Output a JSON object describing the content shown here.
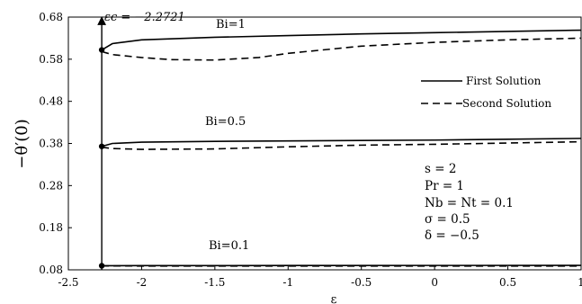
{
  "chart_data": {
    "type": "line",
    "xlabel": "ε",
    "ylabel": "−θ′(0)",
    "xlim": [
      -2.5,
      1
    ],
    "ylim": [
      0.08,
      0.68
    ],
    "x_ticks": [
      -2.5,
      -2,
      -1.5,
      -1,
      -0.5,
      0,
      0.5,
      1
    ],
    "x_tick_labels": [
      "-2.5",
      "-2",
      "-1.5",
      "-1",
      "-0.5",
      "0",
      "0.5",
      "1"
    ],
    "y_ticks": [
      0.08,
      0.18,
      0.28,
      0.38,
      0.48,
      0.58,
      0.68
    ],
    "y_tick_labels": [
      "0.08",
      "0.18",
      "0.28",
      "0.38",
      "0.48",
      "0.58",
      "0.68"
    ],
    "critical": {
      "x": -2.2721,
      "label": "εc = −2.2721"
    },
    "legend": {
      "position": "right",
      "entries": [
        {
          "label": "First Solution",
          "style": "solid"
        },
        {
          "label": "Second Solution",
          "style": "dashed"
        }
      ]
    },
    "annotations": [
      "s = 2",
      "Pr = 1",
      "Nb = Nt = 0.1",
      "σ = 0.5",
      "δ = −0.5"
    ],
    "groups": [
      {
        "label": "Bi=1",
        "first": {
          "x": [
            -2.2721,
            -2.2,
            -2.0,
            -1.5,
            -1.0,
            -0.5,
            0.0,
            0.5,
            1.0
          ],
          "y": [
            0.602,
            0.617,
            0.626,
            0.632,
            0.636,
            0.64,
            0.643,
            0.646,
            0.649
          ]
        },
        "second": {
          "x": [
            -2.2721,
            -2.2,
            -2.0,
            -1.8,
            -1.5,
            -1.2,
            -1.0,
            -0.5,
            0.0,
            0.5,
            1.0
          ],
          "y": [
            0.598,
            0.591,
            0.584,
            0.579,
            0.578,
            0.584,
            0.594,
            0.611,
            0.62,
            0.626,
            0.63
          ]
        }
      },
      {
        "label": "Bi=0.5",
        "first": {
          "x": [
            -2.2721,
            -2.2,
            -2.0,
            -1.5,
            -1.0,
            -0.5,
            0.0,
            0.5,
            1.0
          ],
          "y": [
            0.373,
            0.38,
            0.383,
            0.385,
            0.386,
            0.387,
            0.388,
            0.39,
            0.392
          ]
        },
        "second": {
          "x": [
            -2.2721,
            -2.2,
            -2.0,
            -1.5,
            -1.0,
            -0.5,
            0.0,
            0.5,
            1.0
          ],
          "y": [
            0.371,
            0.368,
            0.366,
            0.367,
            0.372,
            0.376,
            0.378,
            0.381,
            0.384
          ]
        }
      },
      {
        "label": "Bi=0.1",
        "first": {
          "x": [
            -2.2721,
            -2.0,
            -1.0,
            0.0,
            1.0
          ],
          "y": [
            0.0897,
            0.0899,
            0.0902,
            0.0904,
            0.0906
          ]
        },
        "second": {
          "x": [
            -2.2721,
            -2.0,
            -1.0,
            0.0,
            1.0
          ],
          "y": [
            0.0893,
            0.089,
            0.0889,
            0.0889,
            0.089
          ]
        }
      }
    ]
  }
}
